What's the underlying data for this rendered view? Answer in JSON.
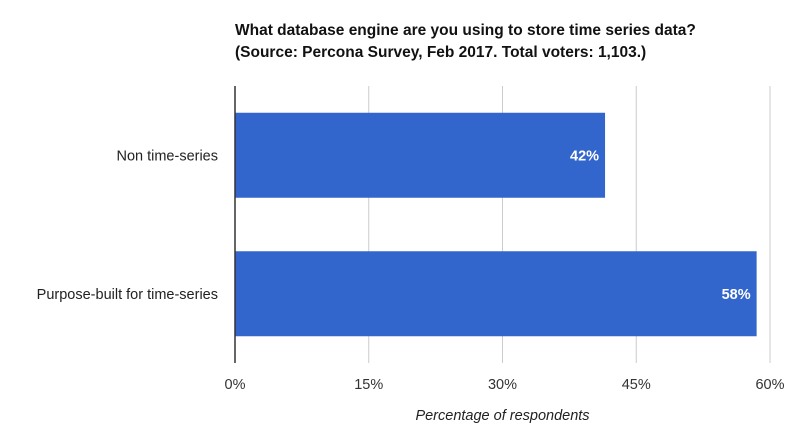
{
  "chart_data": {
    "type": "bar",
    "orientation": "horizontal",
    "title_line1": "What database engine are you using to store time series data?",
    "title_line2": "(Source: Percona Survey, Feb 2017. Total voters: 1,103.)",
    "categories": [
      "Non time-series",
      "Purpose-built for time-series"
    ],
    "values": [
      41.5,
      58.5
    ],
    "data_labels": [
      "42%",
      "58%"
    ],
    "xlabel": "Percentage of respondents",
    "ylabel": "",
    "xlim": [
      0,
      60
    ],
    "x_ticks": [
      0,
      15,
      30,
      45,
      60
    ],
    "x_tick_labels": [
      "0%",
      "15%",
      "30%",
      "45%",
      "60%"
    ],
    "grid": true,
    "legend": "none",
    "colors": {
      "bar": "#3366cc",
      "grid": "#cccccc",
      "axis": "#333333"
    }
  }
}
